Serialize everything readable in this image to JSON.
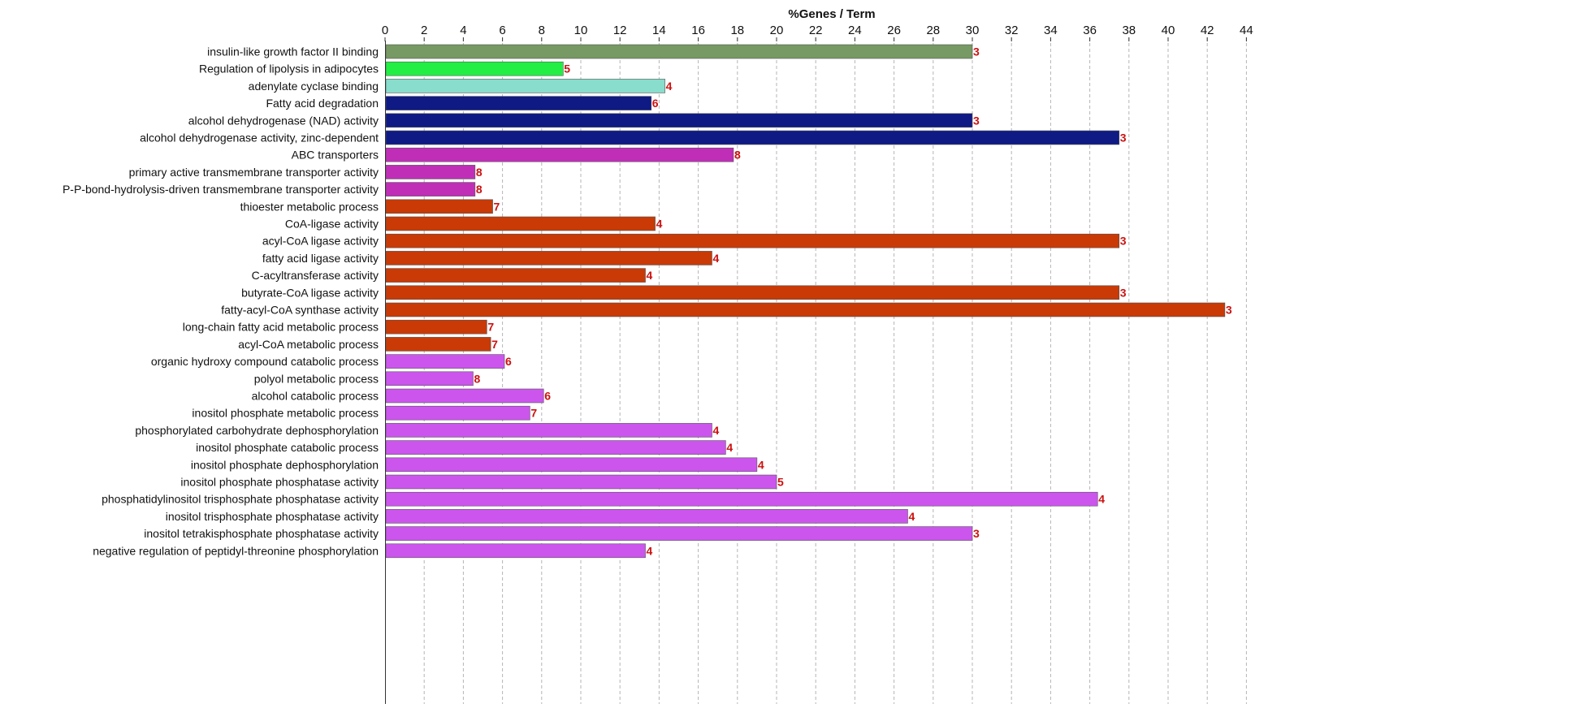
{
  "chart_data": {
    "type": "bar",
    "orientation": "horizontal",
    "title": "%Genes / Term",
    "xlabel": "%Genes / Term",
    "ylabel": "",
    "xlim": [
      0,
      44
    ],
    "x_ticks": [
      0,
      2,
      4,
      6,
      8,
      10,
      12,
      14,
      16,
      18,
      20,
      22,
      24,
      26,
      28,
      30,
      32,
      34,
      36,
      38,
      40,
      42,
      44
    ],
    "grid": "vertical-dashed",
    "axis_position": "top",
    "categories": [
      "insulin-like growth factor II binding",
      "Regulation of lipolysis in adipocytes",
      "adenylate cyclase binding",
      "Fatty acid degradation",
      "alcohol dehydrogenase (NAD) activity",
      "alcohol dehydrogenase activity, zinc-dependent",
      "ABC transporters",
      "primary active transmembrane transporter activity",
      "P-P-bond-hydrolysis-driven transmembrane transporter activity",
      "thioester metabolic process",
      "CoA-ligase activity",
      "acyl-CoA ligase activity",
      "fatty acid ligase activity",
      "C-acyltransferase activity",
      "butyrate-CoA ligase activity",
      "fatty-acyl-CoA synthase activity",
      "long-chain fatty acid metabolic process",
      "acyl-CoA metabolic process",
      "organic hydroxy compound catabolic process",
      "polyol metabolic process",
      "alcohol catabolic process",
      "inositol phosphate metabolic process",
      "phosphorylated carbohydrate dephosphorylation",
      "inositol phosphate catabolic process",
      "inositol phosphate dephosphorylation",
      "inositol phosphate phosphatase activity",
      "phosphatidylinositol trisphosphate phosphatase activity",
      "inositol trisphosphate phosphatase activity",
      "inositol tetrakisphosphate phosphatase activity",
      "negative regulation of peptidyl-threonine phosphorylation"
    ],
    "values": [
      30.0,
      9.1,
      14.3,
      13.6,
      30.0,
      37.5,
      17.8,
      4.6,
      4.6,
      5.5,
      13.8,
      37.5,
      16.7,
      13.3,
      37.5,
      42.9,
      5.2,
      5.4,
      6.1,
      4.5,
      8.1,
      7.4,
      16.7,
      17.4,
      19.0,
      20.0,
      36.4,
      26.7,
      30.0,
      13.3
    ],
    "gene_counts": [
      "3",
      "5",
      "4",
      "6",
      "3",
      "3",
      "8",
      "8",
      "8",
      "7",
      "4",
      "3",
      "4",
      "4",
      "3",
      "3",
      "7",
      "7",
      "6",
      "8",
      "6",
      "7",
      "4",
      "4",
      "4",
      "5",
      "4",
      "4",
      "3",
      "4"
    ],
    "colors": [
      "#779963",
      "#22ee44",
      "#88ddcc",
      "#0f1a85",
      "#0f1a85",
      "#0f1a85",
      "#c02eb8",
      "#c02eb8",
      "#c02eb8",
      "#c93a06",
      "#c93a06",
      "#c93a06",
      "#c93a06",
      "#c93a06",
      "#c93a06",
      "#c93a06",
      "#c93a06",
      "#c93a06",
      "#cc55ee",
      "#cc55ee",
      "#cc55ee",
      "#cc55ee",
      "#cc55ee",
      "#cc55ee",
      "#cc55ee",
      "#cc55ee",
      "#cc55ee",
      "#cc55ee",
      "#cc55ee",
      "#cc55ee"
    ],
    "count_label_color": "#cc1111"
  }
}
